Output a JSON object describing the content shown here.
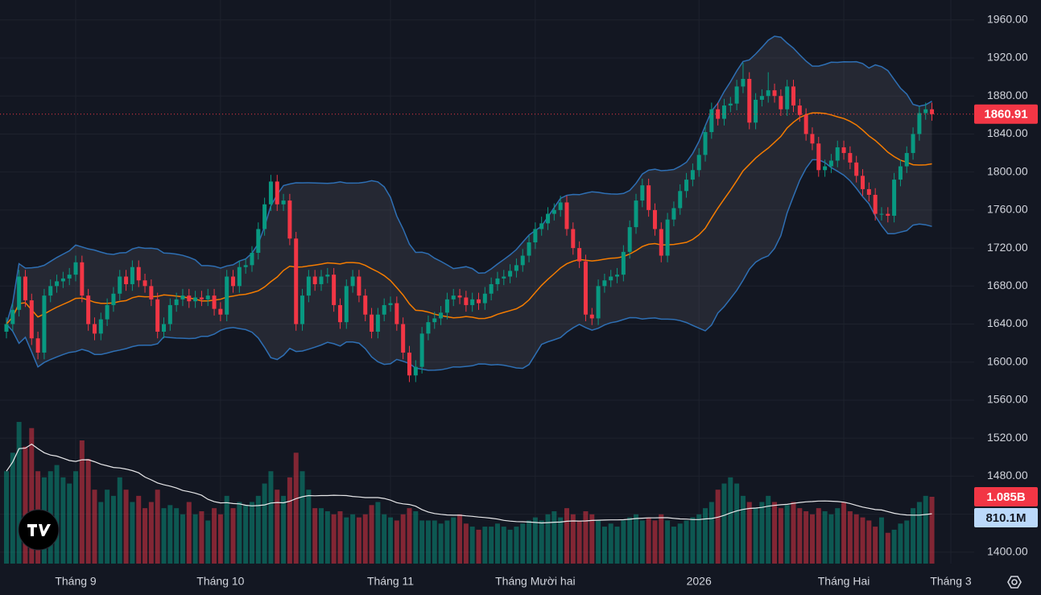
{
  "chart_data": {
    "type": "candlestick",
    "open": [
      1632,
      1640,
      1655,
      1690,
      1665,
      1625,
      1610,
      1670,
      1680,
      1685,
      1688,
      1692,
      1705,
      1670,
      1640,
      1630,
      1645,
      1660,
      1672,
      1690,
      1682,
      1700,
      1686,
      1680,
      1666,
      1632,
      1640,
      1660,
      1666,
      1670,
      1664,
      1668,
      1666,
      1670,
      1656,
      1650,
      1690,
      1680,
      1700,
      1702,
      1715,
      1740,
      1766,
      1790,
      1766,
      1770,
      1730,
      1640,
      1670,
      1690,
      1682,
      1690,
      1692,
      1660,
      1642,
      1680,
      1690,
      1670,
      1650,
      1632,
      1650,
      1660,
      1662,
      1640,
      1610,
      1586,
      1595,
      1630,
      1642,
      1646,
      1652,
      1666,
      1670,
      1668,
      1660,
      1666,
      1662,
      1672,
      1682,
      1688,
      1690,
      1696,
      1702,
      1712,
      1726,
      1740,
      1746,
      1756,
      1760,
      1768,
      1740,
      1720,
      1706,
      1650,
      1646,
      1680,
      1686,
      1690,
      1692,
      1716,
      1742,
      1770,
      1786,
      1760,
      1740,
      1712,
      1750,
      1762,
      1780,
      1792,
      1802,
      1818,
      1842,
      1866,
      1856,
      1870,
      1872,
      1890,
      1898,
      1852,
      1876,
      1880,
      1886,
      1880,
      1866,
      1890,
      1870,
      1860,
      1840,
      1830,
      1802,
      1806,
      1812,
      1826,
      1820,
      1810,
      1796,
      1782,
      1776,
      1756,
      1756,
      1754,
      1792,
      1806,
      1820,
      1840,
      1862,
      1866
    ],
    "high": [
      1647,
      1662,
      1697,
      1697,
      1672,
      1632,
      1677,
      1687,
      1692,
      1695,
      1699,
      1712,
      1712,
      1677,
      1647,
      1652,
      1667,
      1679,
      1697,
      1697,
      1707,
      1707,
      1693,
      1687,
      1673,
      1647,
      1667,
      1673,
      1677,
      1677,
      1675,
      1675,
      1677,
      1677,
      1663,
      1697,
      1697,
      1707,
      1709,
      1722,
      1747,
      1773,
      1797,
      1797,
      1777,
      1777,
      1737,
      1677,
      1697,
      1697,
      1697,
      1699,
      1699,
      1667,
      1687,
      1697,
      1697,
      1677,
      1657,
      1657,
      1667,
      1669,
      1669,
      1647,
      1617,
      1602,
      1637,
      1649,
      1653,
      1659,
      1673,
      1677,
      1677,
      1675,
      1673,
      1673,
      1679,
      1689,
      1695,
      1697,
      1703,
      1709,
      1719,
      1733,
      1747,
      1753,
      1763,
      1767,
      1775,
      1775,
      1747,
      1727,
      1713,
      1657,
      1687,
      1693,
      1697,
      1699,
      1723,
      1749,
      1777,
      1793,
      1793,
      1767,
      1747,
      1757,
      1769,
      1787,
      1799,
      1809,
      1825,
      1849,
      1873,
      1873,
      1877,
      1879,
      1897,
      1915,
      1905,
      1883,
      1887,
      1905,
      1893,
      1887,
      1897,
      1897,
      1877,
      1867,
      1847,
      1837,
      1813,
      1819,
      1833,
      1833,
      1827,
      1817,
      1803,
      1789,
      1783,
      1763,
      1763,
      1799,
      1813,
      1827,
      1847,
      1869,
      1873,
      1873
    ],
    "low": [
      1625,
      1633,
      1648,
      1658,
      1618,
      1603,
      1603,
      1663,
      1673,
      1678,
      1681,
      1685,
      1663,
      1633,
      1623,
      1623,
      1638,
      1653,
      1665,
      1675,
      1675,
      1679,
      1673,
      1659,
      1625,
      1625,
      1633,
      1653,
      1659,
      1657,
      1657,
      1659,
      1659,
      1649,
      1643,
      1643,
      1673,
      1673,
      1693,
      1695,
      1708,
      1733,
      1759,
      1759,
      1759,
      1723,
      1633,
      1633,
      1663,
      1675,
      1675,
      1683,
      1653,
      1635,
      1635,
      1673,
      1663,
      1643,
      1625,
      1625,
      1643,
      1653,
      1633,
      1603,
      1579,
      1579,
      1588,
      1623,
      1635,
      1639,
      1645,
      1659,
      1661,
      1653,
      1653,
      1655,
      1655,
      1665,
      1675,
      1681,
      1683,
      1689,
      1695,
      1705,
      1719,
      1733,
      1739,
      1749,
      1753,
      1733,
      1713,
      1699,
      1643,
      1639,
      1639,
      1673,
      1679,
      1683,
      1685,
      1709,
      1735,
      1763,
      1753,
      1733,
      1705,
      1705,
      1743,
      1755,
      1773,
      1785,
      1795,
      1811,
      1835,
      1849,
      1849,
      1863,
      1865,
      1883,
      1845,
      1845,
      1869,
      1873,
      1873,
      1859,
      1859,
      1863,
      1853,
      1833,
      1823,
      1795,
      1795,
      1799,
      1805,
      1813,
      1803,
      1789,
      1775,
      1769,
      1749,
      1749,
      1747,
      1747,
      1785,
      1799,
      1813,
      1833,
      1855,
      1854
    ],
    "close": [
      1640,
      1655,
      1690,
      1665,
      1625,
      1610,
      1670,
      1680,
      1685,
      1688,
      1692,
      1705,
      1670,
      1640,
      1630,
      1645,
      1660,
      1672,
      1690,
      1682,
      1700,
      1686,
      1680,
      1666,
      1632,
      1640,
      1660,
      1666,
      1670,
      1664,
      1668,
      1666,
      1670,
      1656,
      1650,
      1690,
      1680,
      1700,
      1702,
      1715,
      1740,
      1766,
      1790,
      1766,
      1770,
      1730,
      1640,
      1670,
      1690,
      1682,
      1690,
      1692,
      1660,
      1642,
      1680,
      1690,
      1670,
      1650,
      1632,
      1650,
      1660,
      1662,
      1640,
      1610,
      1586,
      1595,
      1630,
      1642,
      1646,
      1652,
      1666,
      1670,
      1668,
      1660,
      1666,
      1662,
      1672,
      1682,
      1688,
      1690,
      1696,
      1702,
      1712,
      1726,
      1740,
      1746,
      1756,
      1760,
      1768,
      1740,
      1720,
      1706,
      1650,
      1646,
      1680,
      1686,
      1690,
      1692,
      1716,
      1742,
      1770,
      1786,
      1760,
      1740,
      1712,
      1750,
      1762,
      1780,
      1792,
      1802,
      1818,
      1842,
      1866,
      1856,
      1870,
      1872,
      1890,
      1898,
      1852,
      1876,
      1880,
      1886,
      1880,
      1866,
      1890,
      1870,
      1860,
      1840,
      1830,
      1802,
      1806,
      1812,
      1826,
      1820,
      1810,
      1796,
      1782,
      1776,
      1756,
      1756,
      1754,
      1792,
      1806,
      1820,
      1840,
      1862,
      1866,
      1860.91
    ],
    "volume": [
      1500000000.0,
      1800000000.0,
      2300000000.0,
      1900000000.0,
      2200000000.0,
      1500000000.0,
      1400000000.0,
      1500000000.0,
      1600000000.0,
      1400000000.0,
      1300000000.0,
      1500000000.0,
      2000000000.0,
      1700000000.0,
      1200000000.0,
      1000000000.0,
      1200000000.0,
      1100000000.0,
      1400000000.0,
      1200000000.0,
      1000000000.0,
      1100000000.0,
      900000000.0,
      1000000000.0,
      1200000000.0,
      900000000.0,
      950000000.0,
      900000000.0,
      800000000.0,
      1000000000.0,
      800000000.0,
      850000000.0,
      700000000.0,
      900000000.0,
      800000000.0,
      1100000000.0,
      900000000.0,
      1000000000.0,
      950000000.0,
      1000000000.0,
      1100000000.0,
      1300000000.0,
      1500000000.0,
      1200000000.0,
      1100000000.0,
      1400000000.0,
      1800000000.0,
      1500000000.0,
      1200000000.0,
      900000000.0,
      900000000.0,
      850000000.0,
      800000000.0,
      850000000.0,
      750000000.0,
      800000000.0,
      750000000.0,
      800000000.0,
      950000000.0,
      1000000000.0,
      800000000.0,
      750000000.0,
      700000000.0,
      800000000.0,
      900000000.0,
      850000000.0,
      700000000.0,
      700000000.0,
      700000000.0,
      650000000.0,
      700000000.0,
      750000000.0,
      800000000.0,
      650000000.0,
      600000000.0,
      550000000.0,
      600000000.0,
      600000000.0,
      650000000.0,
      600000000.0,
      550000000.0,
      600000000.0,
      650000000.0,
      700000000.0,
      750000000.0,
      700000000.0,
      800000000.0,
      850000000.0,
      750000000.0,
      900000000.0,
      800000000.0,
      700000000.0,
      850000000.0,
      800000000.0,
      700000000.0,
      600000000.0,
      650000000.0,
      600000000.0,
      700000000.0,
      750000000.0,
      800000000.0,
      700000000.0,
      750000000.0,
      700000000.0,
      800000000.0,
      700000000.0,
      600000000.0,
      650000000.0,
      700000000.0,
      750000000.0,
      800000000.0,
      900000000.0,
      1000000000.0,
      1200000000.0,
      1300000000.0,
      1400000000.0,
      1300000000.0,
      1100000000.0,
      1000000000.0,
      900000000.0,
      1000000000.0,
      1100000000.0,
      1000000000.0,
      900000000.0,
      950000000.0,
      1000000000.0,
      900000000.0,
      850000000.0,
      800000000.0,
      900000000.0,
      850000000.0,
      800000000.0,
      900000000.0,
      1000000000.0,
      850000000.0,
      800000000.0,
      750000000.0,
      700000000.0,
      600000000.0,
      750000000.0,
      500000000.0,
      550000000.0,
      650000000.0,
      700000000.0,
      900000000.0,
      1000000000.0,
      1100000000.0,
      1085000000.0
    ],
    "volume_last": {
      "value": 1085000000.0,
      "label": "1.085B"
    },
    "volume_ma_last": {
      "value": 810100000.0,
      "label": "810.1M"
    },
    "up_color": "#089981",
    "down_color": "#f23645",
    "ylim": [
      1388,
      1981
    ],
    "yticks": [
      {
        "value": 1400,
        "label": "1400.00"
      },
      {
        "value": 1440,
        "label": "1440.00"
      },
      {
        "value": 1480,
        "label": "1480.00"
      },
      {
        "value": 1520,
        "label": "1520.00"
      },
      {
        "value": 1560,
        "label": "1560.00"
      },
      {
        "value": 1600,
        "label": "1600.00"
      },
      {
        "value": 1640,
        "label": "1640.00"
      },
      {
        "value": 1680,
        "label": "1680.00"
      },
      {
        "value": 1720,
        "label": "1720.00"
      },
      {
        "value": 1760,
        "label": "1760.00"
      },
      {
        "value": 1800,
        "label": "1800.00"
      },
      {
        "value": 1840,
        "label": "1840.00"
      },
      {
        "value": 1880,
        "label": "1880.00"
      },
      {
        "value": 1920,
        "label": "1920.00"
      },
      {
        "value": 1960,
        "label": "1960.00"
      }
    ],
    "volume_lim": [
      0,
      9150000000.0
    ],
    "xticks": [
      {
        "value": 11,
        "label": "Tháng 9"
      },
      {
        "value": 34,
        "label": "Tháng 10"
      },
      {
        "value": 61,
        "label": "Tháng 11"
      },
      {
        "value": 84,
        "label": "Tháng Mười hai"
      },
      {
        "value": 110,
        "label": "2026"
      },
      {
        "value": 133,
        "label": "Tháng Hai"
      },
      {
        "value": 150,
        "label": "Tháng 3"
      }
    ],
    "grid": true
  }
}
